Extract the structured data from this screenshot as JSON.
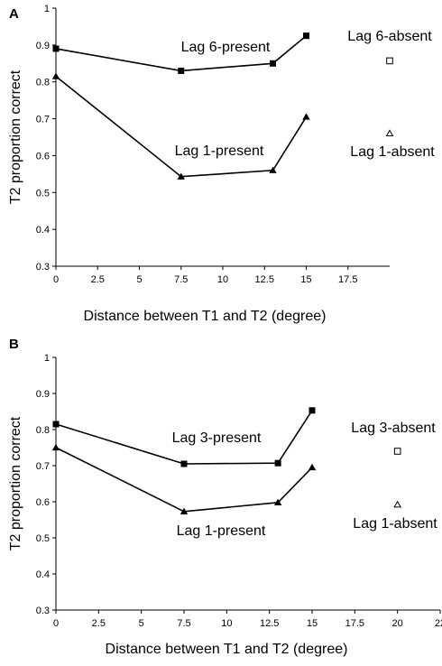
{
  "chart_data": [
    {
      "panel": "A",
      "type": "line",
      "xlabel": "Distance between T1 and T2 (degree)",
      "ylabel": "T2 proportion correct",
      "xlim": [
        0,
        20
      ],
      "ylim": [
        0.3,
        1
      ],
      "xticks": [
        "0",
        "2.5",
        "5",
        "7.5",
        "10",
        "12.5",
        "15",
        "17.5"
      ],
      "yticks": [
        "0.3",
        "0.4",
        "0.5",
        "0.6",
        "0.7",
        "0.8",
        "0.9",
        "1"
      ],
      "series": [
        {
          "name": "Lag 6-present",
          "marker": "filled-square",
          "x": [
            0,
            7.5,
            13,
            15
          ],
          "y": [
            0.89,
            0.83,
            0.85,
            0.925
          ]
        },
        {
          "name": "Lag 1-present",
          "marker": "filled-triangle",
          "x": [
            0,
            7.5,
            13,
            15
          ],
          "y": [
            0.815,
            0.543,
            0.56,
            0.705
          ]
        },
        {
          "name": "Lag 6-absent",
          "marker": "open-square",
          "x": [
            20
          ],
          "y": [
            0.857
          ]
        },
        {
          "name": "Lag 1-absent",
          "marker": "open-triangle",
          "x": [
            20
          ],
          "y": [
            0.66
          ]
        }
      ]
    },
    {
      "panel": "B",
      "type": "line",
      "xlabel": "Distance between T1 and T2 (degree)",
      "ylabel": "T2 proportion correct",
      "xlim": [
        0,
        22.5
      ],
      "ylim": [
        0.3,
        1
      ],
      "xticks": [
        "0",
        "2.5",
        "5",
        "7.5",
        "10",
        "12.5",
        "15",
        "17.5",
        "20",
        "22"
      ],
      "yticks": [
        "0.3",
        "0.4",
        "0.5",
        "0.6",
        "0.7",
        "0.8",
        "0.9",
        "1"
      ],
      "series": [
        {
          "name": "Lag 3-present",
          "marker": "filled-square",
          "x": [
            0,
            7.5,
            13,
            15
          ],
          "y": [
            0.815,
            0.705,
            0.707,
            0.853
          ]
        },
        {
          "name": "Lag 1-present",
          "marker": "filled-triangle",
          "x": [
            0,
            7.5,
            13,
            15
          ],
          "y": [
            0.75,
            0.573,
            0.598,
            0.695
          ]
        },
        {
          "name": "Lag 3-absent",
          "marker": "open-square",
          "x": [
            20
          ],
          "y": [
            0.74
          ]
        },
        {
          "name": "Lag 1-absent",
          "marker": "open-triangle",
          "x": [
            20
          ],
          "y": [
            0.592
          ]
        }
      ]
    }
  ]
}
